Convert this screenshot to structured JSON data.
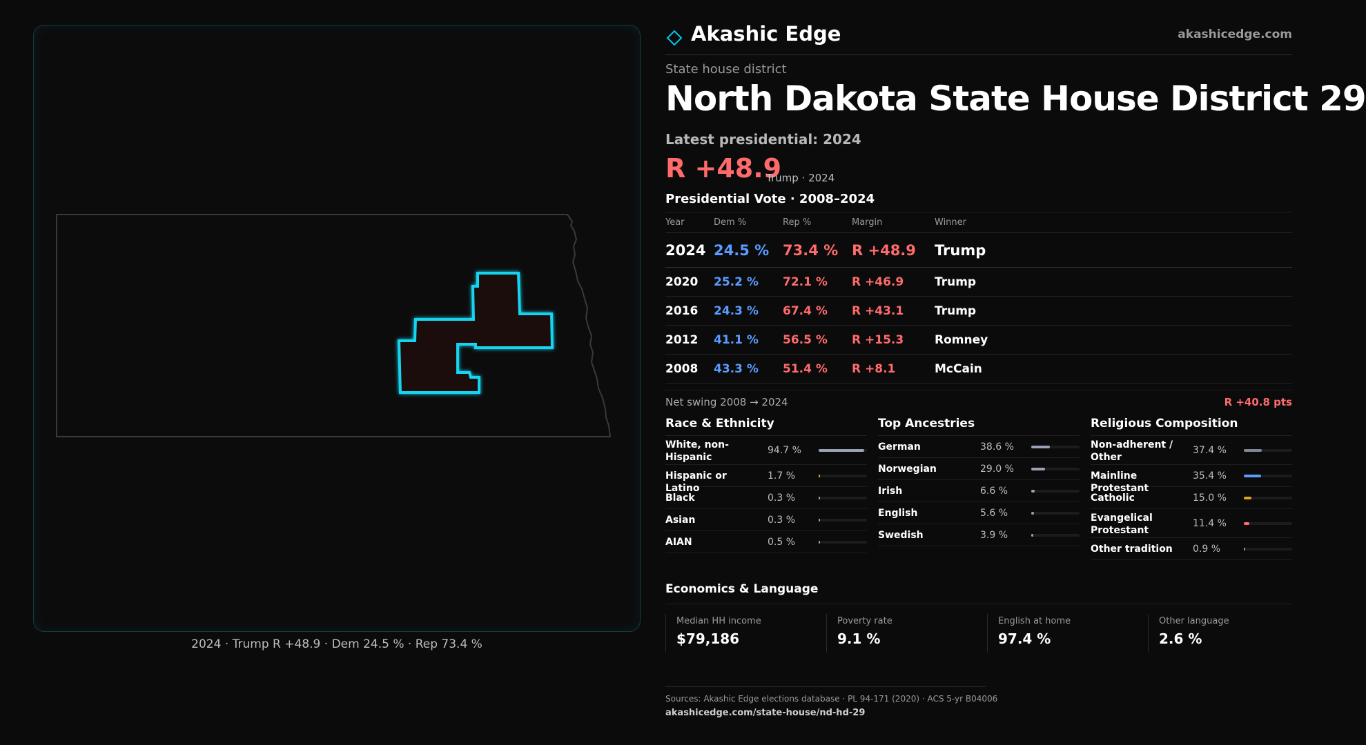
{
  "brand": {
    "name": "Akashic Edge",
    "url": "akashicedge.com"
  },
  "kicker": "State house district",
  "title": "North Dakota State House District 29",
  "latest_label": "Latest presidential: 2024",
  "headline": {
    "margin": "R +48.9",
    "note": "Trump · 2024"
  },
  "presidential": {
    "title": "Presidential Vote · 2008–2024",
    "headers": [
      "Year",
      "Dem %",
      "Rep %",
      "Margin",
      "Winner"
    ],
    "rows": [
      {
        "year": "2024",
        "dem": "24.5 %",
        "rep": "73.4 %",
        "margin": "R +48.9",
        "winner": "Trump"
      },
      {
        "year": "2020",
        "dem": "25.2 %",
        "rep": "72.1 %",
        "margin": "R +46.9",
        "winner": "Trump"
      },
      {
        "year": "2016",
        "dem": "24.3 %",
        "rep": "67.4 %",
        "margin": "R +43.1",
        "winner": "Trump"
      },
      {
        "year": "2012",
        "dem": "41.1 %",
        "rep": "56.5 %",
        "margin": "R +15.3",
        "winner": "Romney"
      },
      {
        "year": "2008",
        "dem": "43.3 %",
        "rep": "51.4 %",
        "margin": "R +8.1",
        "winner": "McCain"
      }
    ]
  },
  "swing": {
    "label": "Net swing 2008 → 2024",
    "value": "R +40.8 pts"
  },
  "race": {
    "title": "Race & Ethnicity",
    "items": [
      {
        "label": "White, non-Hispanic",
        "value": "94.7 %",
        "pct": 94.7,
        "color": "#9aa3b5"
      },
      {
        "label": "Hispanic or Latino",
        "value": "1.7 %",
        "pct": 1.7,
        "color": "#e0a31b"
      },
      {
        "label": "Black",
        "value": "0.3 %",
        "pct": 0.3,
        "color": "#9aa3b5"
      },
      {
        "label": "Asian",
        "value": "0.3 %",
        "pct": 0.3,
        "color": "#9aa3b5"
      },
      {
        "label": "AIAN",
        "value": "0.5 %",
        "pct": 0.5,
        "color": "#9aa3b5"
      }
    ]
  },
  "ancestry": {
    "title": "Top Ancestries",
    "items": [
      {
        "label": "German",
        "value": "38.6 %",
        "pct": 38.6,
        "color": "#9aa3b5"
      },
      {
        "label": "Norwegian",
        "value": "29.0 %",
        "pct": 29.0,
        "color": "#9aa3b5"
      },
      {
        "label": "Irish",
        "value": "6.6 %",
        "pct": 6.6,
        "color": "#9aa3b5"
      },
      {
        "label": "English",
        "value": "5.6 %",
        "pct": 5.6,
        "color": "#9aa3b5"
      },
      {
        "label": "Swedish",
        "value": "3.9 %",
        "pct": 3.9,
        "color": "#9aa3b5"
      }
    ]
  },
  "religion": {
    "title": "Religious Composition",
    "items": [
      {
        "label": "Non-adherent / Other",
        "value": "37.4 %",
        "pct": 37.4,
        "color": "#7f8796"
      },
      {
        "label": "Mainline Protestant",
        "value": "35.4 %",
        "pct": 35.4,
        "color": "#5a9cff"
      },
      {
        "label": "Catholic",
        "value": "15.0 %",
        "pct": 15.0,
        "color": "#e0a31b"
      },
      {
        "label": "Evangelical Protestant",
        "value": "11.4 %",
        "pct": 11.4,
        "color": "#ff6b6b"
      },
      {
        "label": "Other tradition",
        "value": "0.9 %",
        "pct": 0.9,
        "color": "#9aa3b5"
      }
    ]
  },
  "economics": {
    "title": "Economics & Language",
    "cards": [
      {
        "label": "Median HH income",
        "value": "$79,186"
      },
      {
        "label": "Poverty rate",
        "value": "9.1 %"
      },
      {
        "label": "English at home",
        "value": "97.4 %"
      },
      {
        "label": "Other language",
        "value": "2.6 %"
      }
    ]
  },
  "map_caption": "2024 · Trump R +48.9 · Dem 24.5 % · Rep 73.4 %",
  "sources": {
    "text": "Sources: Akashic Edge elections database · PL 94-171 (2020) · ACS 5-yr B04006",
    "url": "akashicedge.com/state-house/nd-hd-29"
  },
  "colors": {
    "accent": "#00c8e6",
    "dem": "#5a9cff",
    "rep": "#ff6b6b",
    "background": "#0b0b0c"
  }
}
